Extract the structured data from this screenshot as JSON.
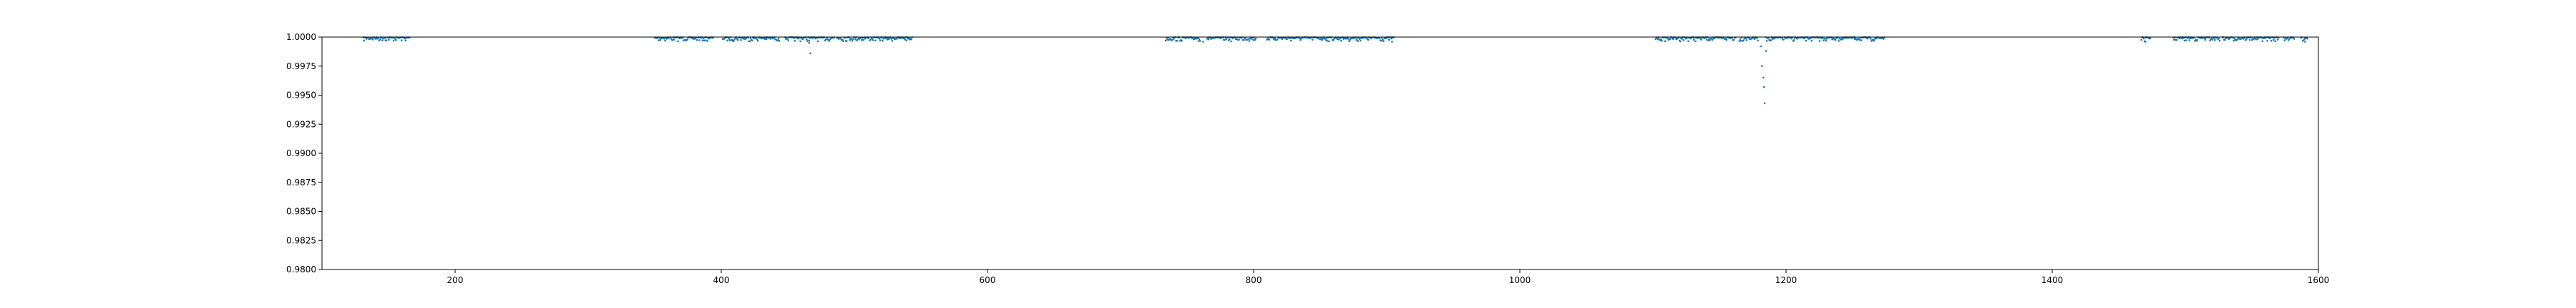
{
  "chart_data": {
    "type": "scatter",
    "title": "",
    "xlabel": "",
    "ylabel": "",
    "xlim": [
      100,
      1600
    ],
    "ylim": [
      0.98,
      1.0
    ],
    "grid": false,
    "xticks": [
      200,
      400,
      600,
      800,
      1000,
      1200,
      1400,
      1600
    ],
    "yticks": [
      0.98,
      0.9825,
      0.985,
      0.9875,
      0.99,
      0.9925,
      0.995,
      0.9975,
      1.0
    ],
    "xtick_labels": [
      "200",
      "400",
      "600",
      "800",
      "1000",
      "1200",
      "1400",
      "1600"
    ],
    "ytick_labels": [
      "0.9800",
      "0.9825",
      "0.9850",
      "0.9875",
      "0.9900",
      "0.9925",
      "0.9950",
      "0.9975",
      "1.0000"
    ],
    "marker_color": "#1f77b4",
    "segments": [
      [
        131,
        166
      ],
      [
        350,
        394
      ],
      [
        401,
        444
      ],
      [
        448,
        485
      ],
      [
        487,
        544
      ],
      [
        734,
        760
      ],
      [
        765,
        802
      ],
      [
        810,
        906
      ],
      [
        1102,
        1162
      ],
      [
        1165,
        1179
      ],
      [
        1185,
        1274
      ],
      [
        1467,
        1474
      ],
      [
        1491,
        1526
      ],
      [
        1528,
        1570
      ],
      [
        1574,
        1582
      ],
      [
        1587,
        1592
      ]
    ],
    "dips": [
      {
        "x": 466,
        "y": 0.9995
      },
      {
        "x": 467,
        "y": 0.9986
      },
      {
        "x": 762,
        "y": 0.9996
      },
      {
        "x": 904,
        "y": 0.9996
      },
      {
        "x": 1181,
        "y": 0.9992
      },
      {
        "x": 1182,
        "y": 0.9975
      },
      {
        "x": 1183,
        "y": 0.9965
      },
      {
        "x": 1183.5,
        "y": 0.9957
      },
      {
        "x": 1184,
        "y": 0.9943
      },
      {
        "x": 1185,
        "y": 0.9988
      },
      {
        "x": 1470,
        "y": 0.9996
      },
      {
        "x": 1590,
        "y": 0.9996
      }
    ]
  }
}
